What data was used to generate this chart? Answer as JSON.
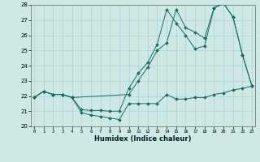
{
  "xlabel": "Humidex (Indice chaleur)",
  "xlim": [
    0,
    23
  ],
  "ylim": [
    20,
    28
  ],
  "xticks": [
    0,
    1,
    2,
    3,
    4,
    5,
    6,
    7,
    8,
    9,
    10,
    11,
    12,
    13,
    14,
    15,
    16,
    17,
    18,
    19,
    20,
    21,
    22,
    23
  ],
  "yticks": [
    20,
    21,
    22,
    23,
    24,
    25,
    26,
    27,
    28
  ],
  "bg_color": "#cde8e5",
  "grid_color": "#a8d5d0",
  "lc": "#1a6b60",
  "line1_x": [
    0,
    1,
    2,
    3,
    4,
    5,
    6,
    7,
    8,
    9,
    10,
    11,
    12,
    13,
    14,
    15,
    16,
    17,
    18,
    19,
    20,
    21,
    22,
    23
  ],
  "line1_y": [
    21.9,
    22.3,
    22.1,
    22.1,
    21.9,
    20.9,
    20.75,
    20.65,
    20.55,
    20.45,
    21.5,
    21.5,
    21.5,
    21.5,
    22.1,
    21.8,
    21.8,
    21.9,
    21.9,
    22.1,
    22.2,
    22.4,
    22.5,
    22.65
  ],
  "line2_x": [
    0,
    1,
    2,
    3,
    4,
    5,
    6,
    7,
    8,
    9,
    10,
    11,
    12,
    13,
    14,
    15,
    16,
    17,
    18,
    19,
    20,
    21,
    22,
    23
  ],
  "line2_y": [
    21.9,
    22.3,
    22.1,
    22.1,
    21.9,
    21.1,
    21.05,
    21.05,
    21.0,
    21.0,
    22.5,
    23.5,
    24.2,
    25.4,
    27.7,
    26.8,
    26.0,
    25.1,
    25.3,
    27.8,
    28.1,
    27.2,
    24.7,
    22.65
  ],
  "line3_x": [
    0,
    1,
    2,
    3,
    4,
    10,
    11,
    12,
    13,
    14,
    15,
    16,
    17,
    18,
    19,
    20,
    21,
    22,
    23
  ],
  "line3_y": [
    21.9,
    22.3,
    22.1,
    22.1,
    21.9,
    22.1,
    23.0,
    23.9,
    25.0,
    25.5,
    27.7,
    26.5,
    26.2,
    25.8,
    27.8,
    28.1,
    27.2,
    24.7,
    22.65
  ]
}
